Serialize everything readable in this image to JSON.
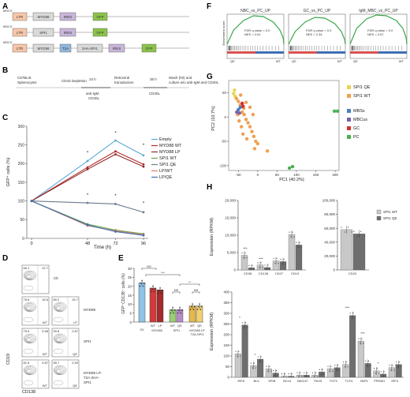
{
  "panels": {
    "A": "A",
    "B": "B",
    "C": "C",
    "D": "D",
    "E": "E",
    "F": "F",
    "G": "G",
    "H": "H"
  },
  "panelA": {
    "colors": {
      "ltr": "#f6c6a8",
      "gene": "#d9d9d9",
      "t2a": "#8fb8dc",
      "ires": "#c7b6d9",
      "gfp": "#8bc34a"
    },
    "constructs": [
      {
        "vector": "MSCV",
        "boxes": [
          "LTR",
          "MYD88",
          "IRES",
          "GFP"
        ]
      },
      {
        "vector": "MSCV",
        "boxes": [
          "LTR",
          "SPI1",
          "IRES",
          "GFP"
        ]
      },
      {
        "vector": "MSCV",
        "boxes": [
          "LTR",
          "MYD88",
          "T2A",
          "2HA-SPI1",
          "IRES",
          "GFP"
        ]
      }
    ]
  },
  "panelB": {
    "steps": [
      "C57BL/6 Splenocytes",
      "CD43 Depletion",
      "Retroviral transduction",
      "Wash (h0) and culture w/o anti-IgM and CD40L"
    ],
    "arrow1_top": "24 h",
    "arrow1_bottom1": "anti-IgM",
    "arrow1_bottom2": "CD40L",
    "arrow2_top": "36 h",
    "arrow2_bottom": "CD40L"
  },
  "panelC": {
    "ylabel": "GFP⁺ cells (%)",
    "xlabel": "Time (h)",
    "star": "*",
    "chart_data": {
      "type": "line",
      "x": [
        0,
        48,
        72,
        96
      ],
      "xticks": [
        "0",
        "48",
        "72",
        "96"
      ],
      "yticks": [
        "0",
        "50",
        "100",
        "150",
        "200",
        "250",
        "300"
      ],
      "ylim": [
        0,
        300
      ],
      "series": [
        {
          "name": "Empty",
          "color": "#5aa9d6",
          "values": [
            100,
            207,
            262,
            222
          ]
        },
        {
          "name": "MYD88 WT",
          "color": "#b52a2a",
          "values": [
            100,
            190,
            233,
            198
          ]
        },
        {
          "name": "MYD88 LP",
          "color": "#8c2b2b",
          "values": [
            100,
            185,
            225,
            192
          ]
        },
        {
          "name": "SPI1 WT",
          "color": "#6aa84f",
          "values": [
            100,
            38,
            22,
            12
          ]
        },
        {
          "name": "SPI1 QE",
          "color": "#6b7b8c",
          "values": [
            100,
            95,
            92,
            70
          ]
        },
        {
          "name": "LP/WT",
          "color": "#e07a6a",
          "values": [
            100,
            34,
            20,
            10
          ]
        },
        {
          "name": "LP/QE",
          "color": "#3f6fb5",
          "values": [
            100,
            36,
            18,
            8
          ]
        }
      ]
    }
  },
  "panelD": {
    "ylabel": "CD19",
    "xlabel": "CD138",
    "rows": [
      {
        "label": "Ctl",
        "plots": [
          {
            "tl": "66.1",
            "tr": "22.7",
            "tag": ""
          }
        ]
      },
      {
        "label": "MYD88",
        "plots": [
          {
            "tl": "76.6",
            "tr": "18.6",
            "tag": "WT"
          },
          {
            "tl": "80.2",
            "tr": "15.7",
            "tag": "LP"
          }
        ]
      },
      {
        "label": "SPI1",
        "plots": [
          {
            "tl": "75.5",
            "tr": "5.58",
            "tag": "WT"
          },
          {
            "tl": "90.8",
            "tr": "2.87",
            "tag": "QE"
          }
        ]
      },
      {
        "label": "MYD88 LP-T2A-2HA-SPI1",
        "plots": [
          {
            "tl": "81.5",
            "tr": "9.87",
            "tag": "WT"
          },
          {
            "tl": "85.7",
            "tr": "2.59",
            "tag": "QE"
          }
        ]
      }
    ]
  },
  "panelE": {
    "ylabel": "GFP⁺CD138⁺ cells (%)",
    "ns1": "NS",
    "sig1": "***",
    "ns2": "NS",
    "sig2": "**",
    "ns3": "NS",
    "groups": [
      "Ctl",
      "MYD88",
      "SPI1",
      "MYD88 LP T2A-SPI1"
    ],
    "chart_data": {
      "type": "bar",
      "categories": [
        "Ctl",
        "WT",
        "LP",
        "WT",
        "QE",
        "WT",
        "QE"
      ],
      "values": [
        22,
        19,
        18,
        7,
        7,
        9,
        9
      ],
      "colors": [
        "#8ec3e6",
        "#d13b3b",
        "#a52a2a",
        "#9acd74",
        "#b48cc8",
        "#e5b84a",
        "#f0d070"
      ],
      "yticks": [
        "0",
        "5",
        "10",
        "15",
        "20",
        "25",
        "30"
      ],
      "ylim": [
        0,
        30
      ]
    }
  },
  "panelF": {
    "ylabel": "Enrichment score",
    "plots": [
      {
        "title": "NBC_vs_PC_UP",
        "fdr": "FDR q value = 0.0",
        "nes": "NES = 2.61",
        "left": "QE",
        "right": "WT"
      },
      {
        "title": "GC_vs_PC_UP",
        "fdr": "FDR q value = 0.0",
        "nes": "NES = 2.34",
        "left": "QE",
        "right": "WT"
      },
      {
        "title": "IgM_MBC_vs_PC_UP",
        "fdr": "FDR q value = 0.0",
        "nes": "NES = 2.67",
        "left": "QE",
        "right": "WT"
      }
    ]
  },
  "panelG": {
    "xlabel": "PC1 (40.2%)",
    "ylabel": "PC2 (10.7%)",
    "xticks": [
      "-50",
      "0",
      "50",
      "100",
      "150",
      "200"
    ],
    "yticks": [
      "-100",
      "-50",
      "0",
      "50"
    ],
    "legend": [
      {
        "label": "SPI1 QE",
        "color": "#e8d44d"
      },
      {
        "label": "SPI1 WT",
        "color": "#f0a050"
      },
      {
        "label": "MBSs",
        "color": "#4a7fc1"
      },
      {
        "label": "MBCus",
        "color": "#7a5fa8"
      },
      {
        "label": "GC",
        "color": "#d03030"
      },
      {
        "label": "PC",
        "color": "#4caf50"
      }
    ],
    "chart_data": {
      "type": "scatter",
      "xlim": [
        -75,
        210
      ],
      "ylim": [
        -110,
        75
      ],
      "series": [
        {
          "name": "SPI1 QE",
          "color": "#e8d44d",
          "points": [
            [
              -60,
              55
            ],
            [
              -62,
              48
            ],
            [
              -58,
              42
            ]
          ]
        },
        {
          "name": "SPI1 WT",
          "color": "#f0a050",
          "points": [
            [
              -55,
              38
            ],
            [
              -50,
              32
            ],
            [
              -45,
              25
            ],
            [
              -40,
              10
            ],
            [
              -35,
              5
            ],
            [
              -30,
              -5
            ],
            [
              -25,
              -12
            ],
            [
              -20,
              -20
            ],
            [
              -15,
              -30
            ],
            [
              -10,
              -40
            ],
            [
              -5,
              -50
            ],
            [
              0,
              -55
            ],
            [
              -42,
              -20
            ],
            [
              -38,
              -35
            ],
            [
              -28,
              -45
            ],
            [
              -52,
              5
            ],
            [
              -48,
              -8
            ],
            [
              -20,
              20
            ],
            [
              -12,
              5
            ],
            [
              -30,
              30
            ],
            [
              25,
              -70
            ],
            [
              -8,
              -65
            ],
            [
              -44,
              45
            ],
            [
              -36,
              18
            ]
          ]
        },
        {
          "name": "MBSs",
          "color": "#4a7fc1",
          "points": [
            [
              -50,
              15
            ],
            [
              -45,
              20
            ]
          ]
        },
        {
          "name": "MBCus",
          "color": "#7a5fa8",
          "points": [
            [
              -54,
              10
            ],
            [
              -47,
              8
            ]
          ]
        },
        {
          "name": "GC",
          "color": "#d03030",
          "points": [
            [
              -40,
              28
            ],
            [
              -38,
              22
            ]
          ]
        },
        {
          "name": "PC",
          "color": "#4caf50",
          "points": [
            [
              82,
              -105
            ],
            [
              90,
              -102
            ],
            [
              198,
              12
            ],
            [
              206,
              12
            ]
          ]
        }
      ]
    }
  },
  "panelH": {
    "ylabel": "Expression (RPKM)",
    "legend": [
      {
        "label": "SPI1 WT",
        "color": "#c8c8c8"
      },
      {
        "label": "SPI1 QE",
        "color": "#6e6e6e"
      }
    ],
    "top": {
      "chart_data": {
        "type": "bar",
        "categories": [
          "CD38",
          "CD138",
          "CD27",
          "CD19"
        ],
        "series": [
          {
            "name": "SPI1 WT",
            "values": [
              4200,
              1400,
              2600,
              10200
            ]
          },
          {
            "name": "SPI1 QE",
            "values": [
              600,
              700,
              2400,
              7200
            ]
          }
        ],
        "yticks": [
          "0",
          "5,000",
          "10,000",
          "15,000",
          "20,000"
        ],
        "ylim": [
          0,
          20000
        ]
      },
      "sigs": [
        "***",
        "***"
      ]
    },
    "top2": {
      "chart_data": {
        "type": "bar",
        "categories": [
          "CD20"
        ],
        "series": [
          {
            "name": "SPI1 WT",
            "values": [
              58000
            ]
          },
          {
            "name": "SPI1 QE",
            "values": [
              52000
            ]
          }
        ],
        "yticks": [
          "0",
          "20,000",
          "40,000",
          "60,000",
          "80,000",
          "100,000"
        ],
        "ylim": [
          0,
          100000
        ]
      }
    },
    "bottom": {
      "chart_data": {
        "type": "bar",
        "categories": [
          "IRF8",
          "BLK",
          "SPIB",
          "BCL6",
          "BACH2",
          "PAX5",
          "TCF3",
          "TCF4",
          "XBP1",
          "PRDM1",
          "IRF4"
        ],
        "series": [
          {
            "name": "SPI1 WT",
            "values": [
              110,
              55,
              40,
              5,
              10,
              10,
              40,
              60,
              170,
              30,
              45
            ]
          },
          {
            "name": "SPI1 QE",
            "values": [
              245,
              85,
              20,
              5,
              10,
              25,
              45,
              290,
              65,
              15,
              60
            ]
          }
        ],
        "yticks": [
          "0",
          "50",
          "100",
          "150",
          "200",
          "250",
          "300",
          "350",
          "400"
        ],
        "ylim": [
          0,
          400
        ]
      },
      "sigs": [
        "*",
        "*",
        "***",
        "***",
        "*"
      ]
    }
  }
}
